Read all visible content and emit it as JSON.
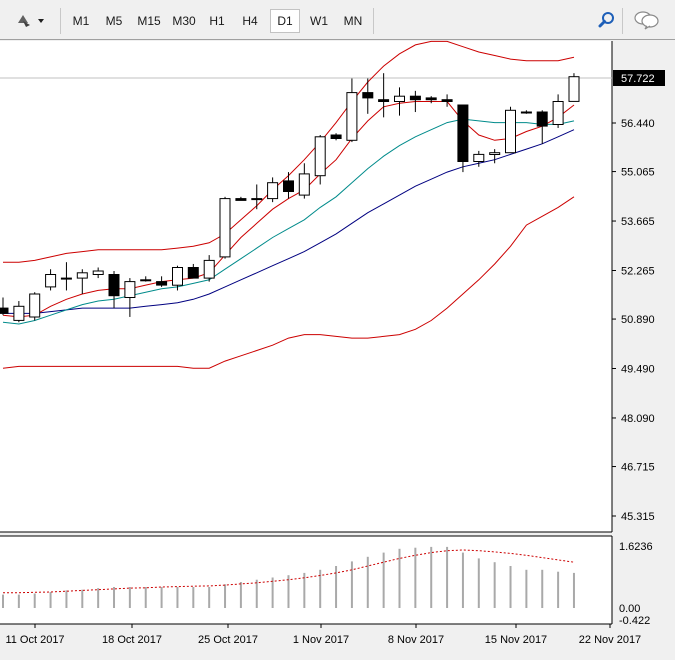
{
  "toolbar": {
    "periods": [
      "M1",
      "M5",
      "M15",
      "M30",
      "H1",
      "H4",
      "D1",
      "W1",
      "MN"
    ],
    "active_period": "D1",
    "icons": [
      "drawing-tools-icon",
      "search-icon",
      "chat-icon"
    ]
  },
  "chart_data": {
    "type": "candlestick",
    "price_axis_ticks": [
      "45.315",
      "46.715",
      "48.090",
      "49.490",
      "50.890",
      "52.265",
      "53.665",
      "55.065",
      "56.440"
    ],
    "current_price": "57.722",
    "date_labels": [
      "11 Oct 2017",
      "18 Oct 2017",
      "25 Oct 2017",
      "1 Nov 2017",
      "8 Nov 2017",
      "15 Nov 2017",
      "22 Nov 2017"
    ],
    "candles": [
      {
        "o": 51.2,
        "h": 51.5,
        "l": 51.0,
        "c": 51.05
      },
      {
        "o": 50.85,
        "h": 51.4,
        "l": 50.8,
        "c": 51.25
      },
      {
        "o": 50.95,
        "h": 51.65,
        "l": 50.85,
        "c": 51.6
      },
      {
        "o": 51.8,
        "h": 52.3,
        "l": 51.7,
        "c": 52.15
      },
      {
        "o": 52.05,
        "h": 52.5,
        "l": 51.7,
        "c": 52.05
      },
      {
        "o": 52.05,
        "h": 52.3,
        "l": 51.6,
        "c": 52.2
      },
      {
        "o": 52.15,
        "h": 52.35,
        "l": 52.05,
        "c": 52.25
      },
      {
        "o": 52.15,
        "h": 52.25,
        "l": 51.2,
        "c": 51.55
      },
      {
        "o": 51.5,
        "h": 52.05,
        "l": 50.95,
        "c": 51.95
      },
      {
        "o": 52.0,
        "h": 52.1,
        "l": 51.95,
        "c": 52.0
      },
      {
        "o": 51.95,
        "h": 52.1,
        "l": 51.8,
        "c": 51.85
      },
      {
        "o": 51.85,
        "h": 52.4,
        "l": 51.7,
        "c": 52.35
      },
      {
        "o": 52.35,
        "h": 52.45,
        "l": 52.1,
        "c": 52.05
      },
      {
        "o": 52.05,
        "h": 52.7,
        "l": 51.95,
        "c": 52.55
      },
      {
        "o": 52.65,
        "h": 54.35,
        "l": 52.6,
        "c": 54.3
      },
      {
        "o": 54.3,
        "h": 54.35,
        "l": 54.25,
        "c": 54.25
      },
      {
        "o": 54.3,
        "h": 54.7,
        "l": 54.0,
        "c": 54.3
      },
      {
        "o": 54.3,
        "h": 54.9,
        "l": 54.2,
        "c": 54.75
      },
      {
        "o": 54.8,
        "h": 55.05,
        "l": 54.3,
        "c": 54.5
      },
      {
        "o": 54.4,
        "h": 55.3,
        "l": 54.3,
        "c": 55.0
      },
      {
        "o": 54.95,
        "h": 56.1,
        "l": 54.7,
        "c": 56.05
      },
      {
        "o": 56.1,
        "h": 56.15,
        "l": 55.95,
        "c": 56.0
      },
      {
        "o": 55.95,
        "h": 57.7,
        "l": 55.9,
        "c": 57.3
      },
      {
        "o": 57.3,
        "h": 57.7,
        "l": 56.7,
        "c": 57.15
      },
      {
        "o": 57.1,
        "h": 57.85,
        "l": 56.6,
        "c": 57.05
      },
      {
        "o": 57.05,
        "h": 57.45,
        "l": 56.65,
        "c": 57.2
      },
      {
        "o": 57.2,
        "h": 57.35,
        "l": 56.75,
        "c": 57.1
      },
      {
        "o": 57.15,
        "h": 57.2,
        "l": 57.0,
        "c": 57.1
      },
      {
        "o": 57.1,
        "h": 57.25,
        "l": 56.9,
        "c": 57.05
      },
      {
        "o": 56.95,
        "h": 56.95,
        "l": 55.05,
        "c": 55.35
      },
      {
        "o": 55.35,
        "h": 55.65,
        "l": 55.2,
        "c": 55.55
      },
      {
        "o": 55.55,
        "h": 55.7,
        "l": 55.3,
        "c": 55.6
      },
      {
        "o": 55.6,
        "h": 56.9,
        "l": 55.6,
        "c": 56.8
      },
      {
        "o": 56.75,
        "h": 56.8,
        "l": 56.7,
        "c": 56.75
      },
      {
        "o": 56.75,
        "h": 56.8,
        "l": 55.85,
        "c": 56.35
      },
      {
        "o": 56.4,
        "h": 57.25,
        "l": 56.3,
        "c": 57.05
      },
      {
        "o": 57.05,
        "h": 57.85,
        "l": 57.05,
        "c": 57.75
      }
    ],
    "ma_fast": [
      51.0,
      50.95,
      51.0,
      51.25,
      51.45,
      51.6,
      51.7,
      51.75,
      51.75,
      51.85,
      51.95,
      52.0,
      52.05,
      52.2,
      52.7,
      53.2,
      53.6,
      54.0,
      54.3,
      54.55,
      55.0,
      55.4,
      56.0,
      56.5,
      56.9,
      57.0,
      57.05,
      57.05,
      57.05,
      56.5,
      56.1,
      55.95,
      56.0,
      56.2,
      56.35,
      56.6,
      56.95
    ],
    "ma_mid": [
      50.8,
      50.75,
      50.85,
      51.0,
      51.15,
      51.3,
      51.4,
      51.45,
      51.55,
      51.65,
      51.75,
      51.8,
      51.9,
      52.0,
      52.3,
      52.6,
      52.9,
      53.2,
      53.45,
      53.7,
      54.05,
      54.35,
      54.75,
      55.15,
      55.5,
      55.8,
      56.05,
      56.25,
      56.45,
      56.55,
      56.5,
      56.45,
      56.45,
      56.45,
      56.4,
      56.4,
      56.5
    ],
    "ma_slow": [
      51.05,
      51.05,
      51.05,
      51.1,
      51.15,
      51.2,
      51.2,
      51.2,
      51.2,
      51.25,
      51.3,
      51.35,
      51.45,
      51.6,
      51.8,
      52.0,
      52.2,
      52.4,
      52.6,
      52.8,
      53.05,
      53.3,
      53.6,
      53.9,
      54.15,
      54.4,
      54.65,
      54.85,
      55.05,
      55.2,
      55.3,
      55.4,
      55.55,
      55.7,
      55.85,
      56.05,
      56.25
    ],
    "band_upper": [
      52.5,
      52.5,
      52.55,
      52.65,
      52.75,
      52.8,
      52.85,
      52.85,
      52.85,
      52.85,
      52.85,
      52.9,
      52.95,
      53.05,
      53.3,
      53.7,
      54.1,
      54.55,
      54.95,
      55.4,
      55.9,
      56.45,
      57.05,
      57.6,
      58.05,
      58.4,
      58.65,
      58.75,
      58.75,
      58.6,
      58.45,
      58.35,
      58.25,
      58.2,
      58.2,
      58.2,
      58.3
    ],
    "band_lower": [
      49.5,
      49.55,
      49.55,
      49.55,
      49.55,
      49.55,
      49.55,
      49.55,
      49.55,
      49.55,
      49.55,
      49.55,
      49.5,
      49.5,
      49.7,
      49.85,
      50.0,
      50.15,
      50.35,
      50.45,
      50.45,
      50.4,
      50.35,
      50.35,
      50.4,
      50.45,
      50.6,
      50.85,
      51.2,
      51.6,
      52.0,
      52.45,
      52.95,
      53.55,
      53.8,
      54.05,
      54.35
    ],
    "oscillator_ticks": [
      "1.6236",
      "0.00",
      "-0.422"
    ],
    "oscillator_bars": [
      0.35,
      0.35,
      0.38,
      0.42,
      0.46,
      0.48,
      0.52,
      0.55,
      0.55,
      0.55,
      0.55,
      0.55,
      0.55,
      0.55,
      0.62,
      0.68,
      0.74,
      0.8,
      0.86,
      0.92,
      1.0,
      1.1,
      1.22,
      1.34,
      1.45,
      1.55,
      1.58,
      1.6,
      1.6,
      1.45,
      1.3,
      1.2,
      1.1,
      1.0,
      1.0,
      0.95,
      0.92
    ],
    "oscillator_signal": [
      0.4,
      0.4,
      0.41,
      0.42,
      0.44,
      0.46,
      0.48,
      0.5,
      0.52,
      0.53,
      0.55,
      0.56,
      0.57,
      0.58,
      0.6,
      0.63,
      0.66,
      0.7,
      0.74,
      0.79,
      0.85,
      0.92,
      1.0,
      1.1,
      1.2,
      1.3,
      1.38,
      1.45,
      1.5,
      1.52,
      1.5,
      1.47,
      1.43,
      1.38,
      1.32,
      1.26,
      1.2
    ],
    "colors": {
      "bull_body": "#ffffff",
      "bear_body": "#000000",
      "ma_fast": "#cc0000",
      "ma_mid": "#008b8b",
      "ma_slow": "#000080",
      "bands": "#cc0000",
      "osc_bars": "#a9a9a9",
      "osc_signal": "#cc0000"
    }
  }
}
